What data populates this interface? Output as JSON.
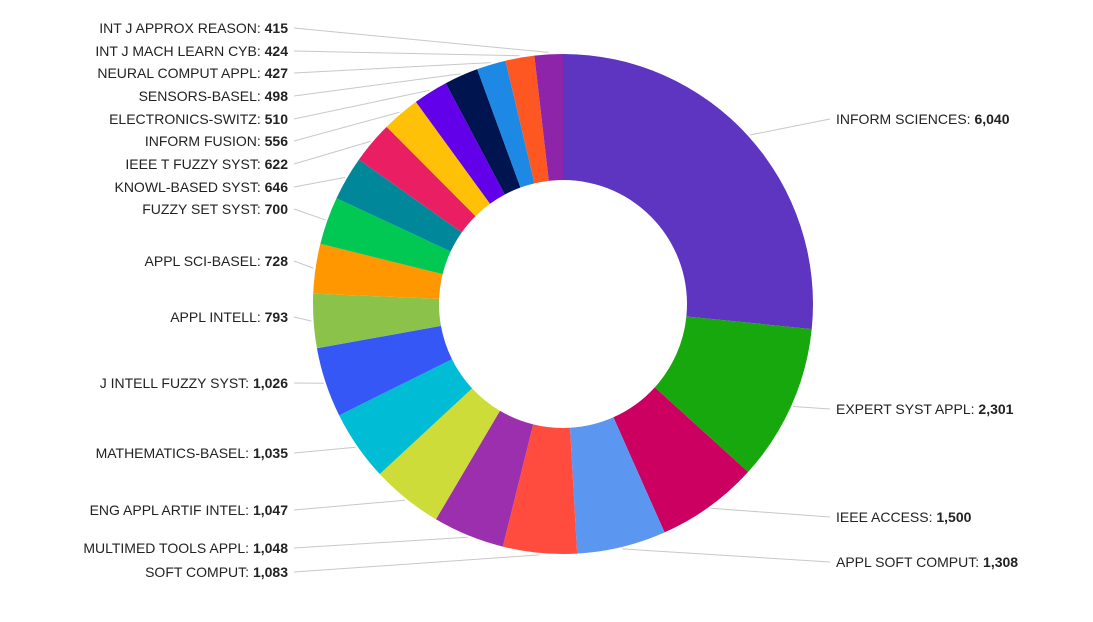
{
  "chart_data": {
    "type": "pie",
    "donut": true,
    "title": "",
    "categories": [
      "INFORM SCIENCES",
      "EXPERT SYST APPL",
      "IEEE ACCESS",
      "APPL SOFT COMPUT",
      "SOFT COMPUT",
      "MULTIMED TOOLS APPL",
      "ENG APPL ARTIF INTEL",
      "MATHEMATICS-BASEL",
      "J INTELL FUZZY SYST",
      "APPL INTELL",
      "APPL SCI-BASEL",
      "FUZZY SET SYST",
      "KNOWL-BASED SYST",
      "IEEE T FUZZY SYST",
      "INFORM FUSION",
      "ELECTRONICS-SWITZ",
      "SENSORS-BASEL",
      "NEURAL COMPUT APPL",
      "INT J MACH LEARN CYB",
      "INT J APPROX REASON"
    ],
    "values": [
      6040,
      2301,
      1500,
      1308,
      1083,
      1048,
      1047,
      1035,
      1026,
      793,
      728,
      700,
      646,
      622,
      556,
      510,
      498,
      427,
      424,
      415
    ],
    "value_labels": [
      "6,040",
      "2,301",
      "1,500",
      "1,308",
      "1,083",
      "1,048",
      "1,047",
      "1,035",
      "1,026",
      "793",
      "728",
      "700",
      "646",
      "622",
      "556",
      "510",
      "498",
      "427",
      "424",
      "415"
    ],
    "colors": [
      "#5d35c0",
      "#17a80d",
      "#cc0060",
      "#5b96f0",
      "#ff4c3f",
      "#9b2fae",
      "#cddc39",
      "#00bcd4",
      "#3557f5",
      "#8bc34a",
      "#ff9800",
      "#00c853",
      "#00889a",
      "#e91e63",
      "#ffc107",
      "#6200ea",
      "#001450",
      "#1e88e5",
      "#ff5722",
      "#8e24aa"
    ],
    "legend": "none"
  }
}
